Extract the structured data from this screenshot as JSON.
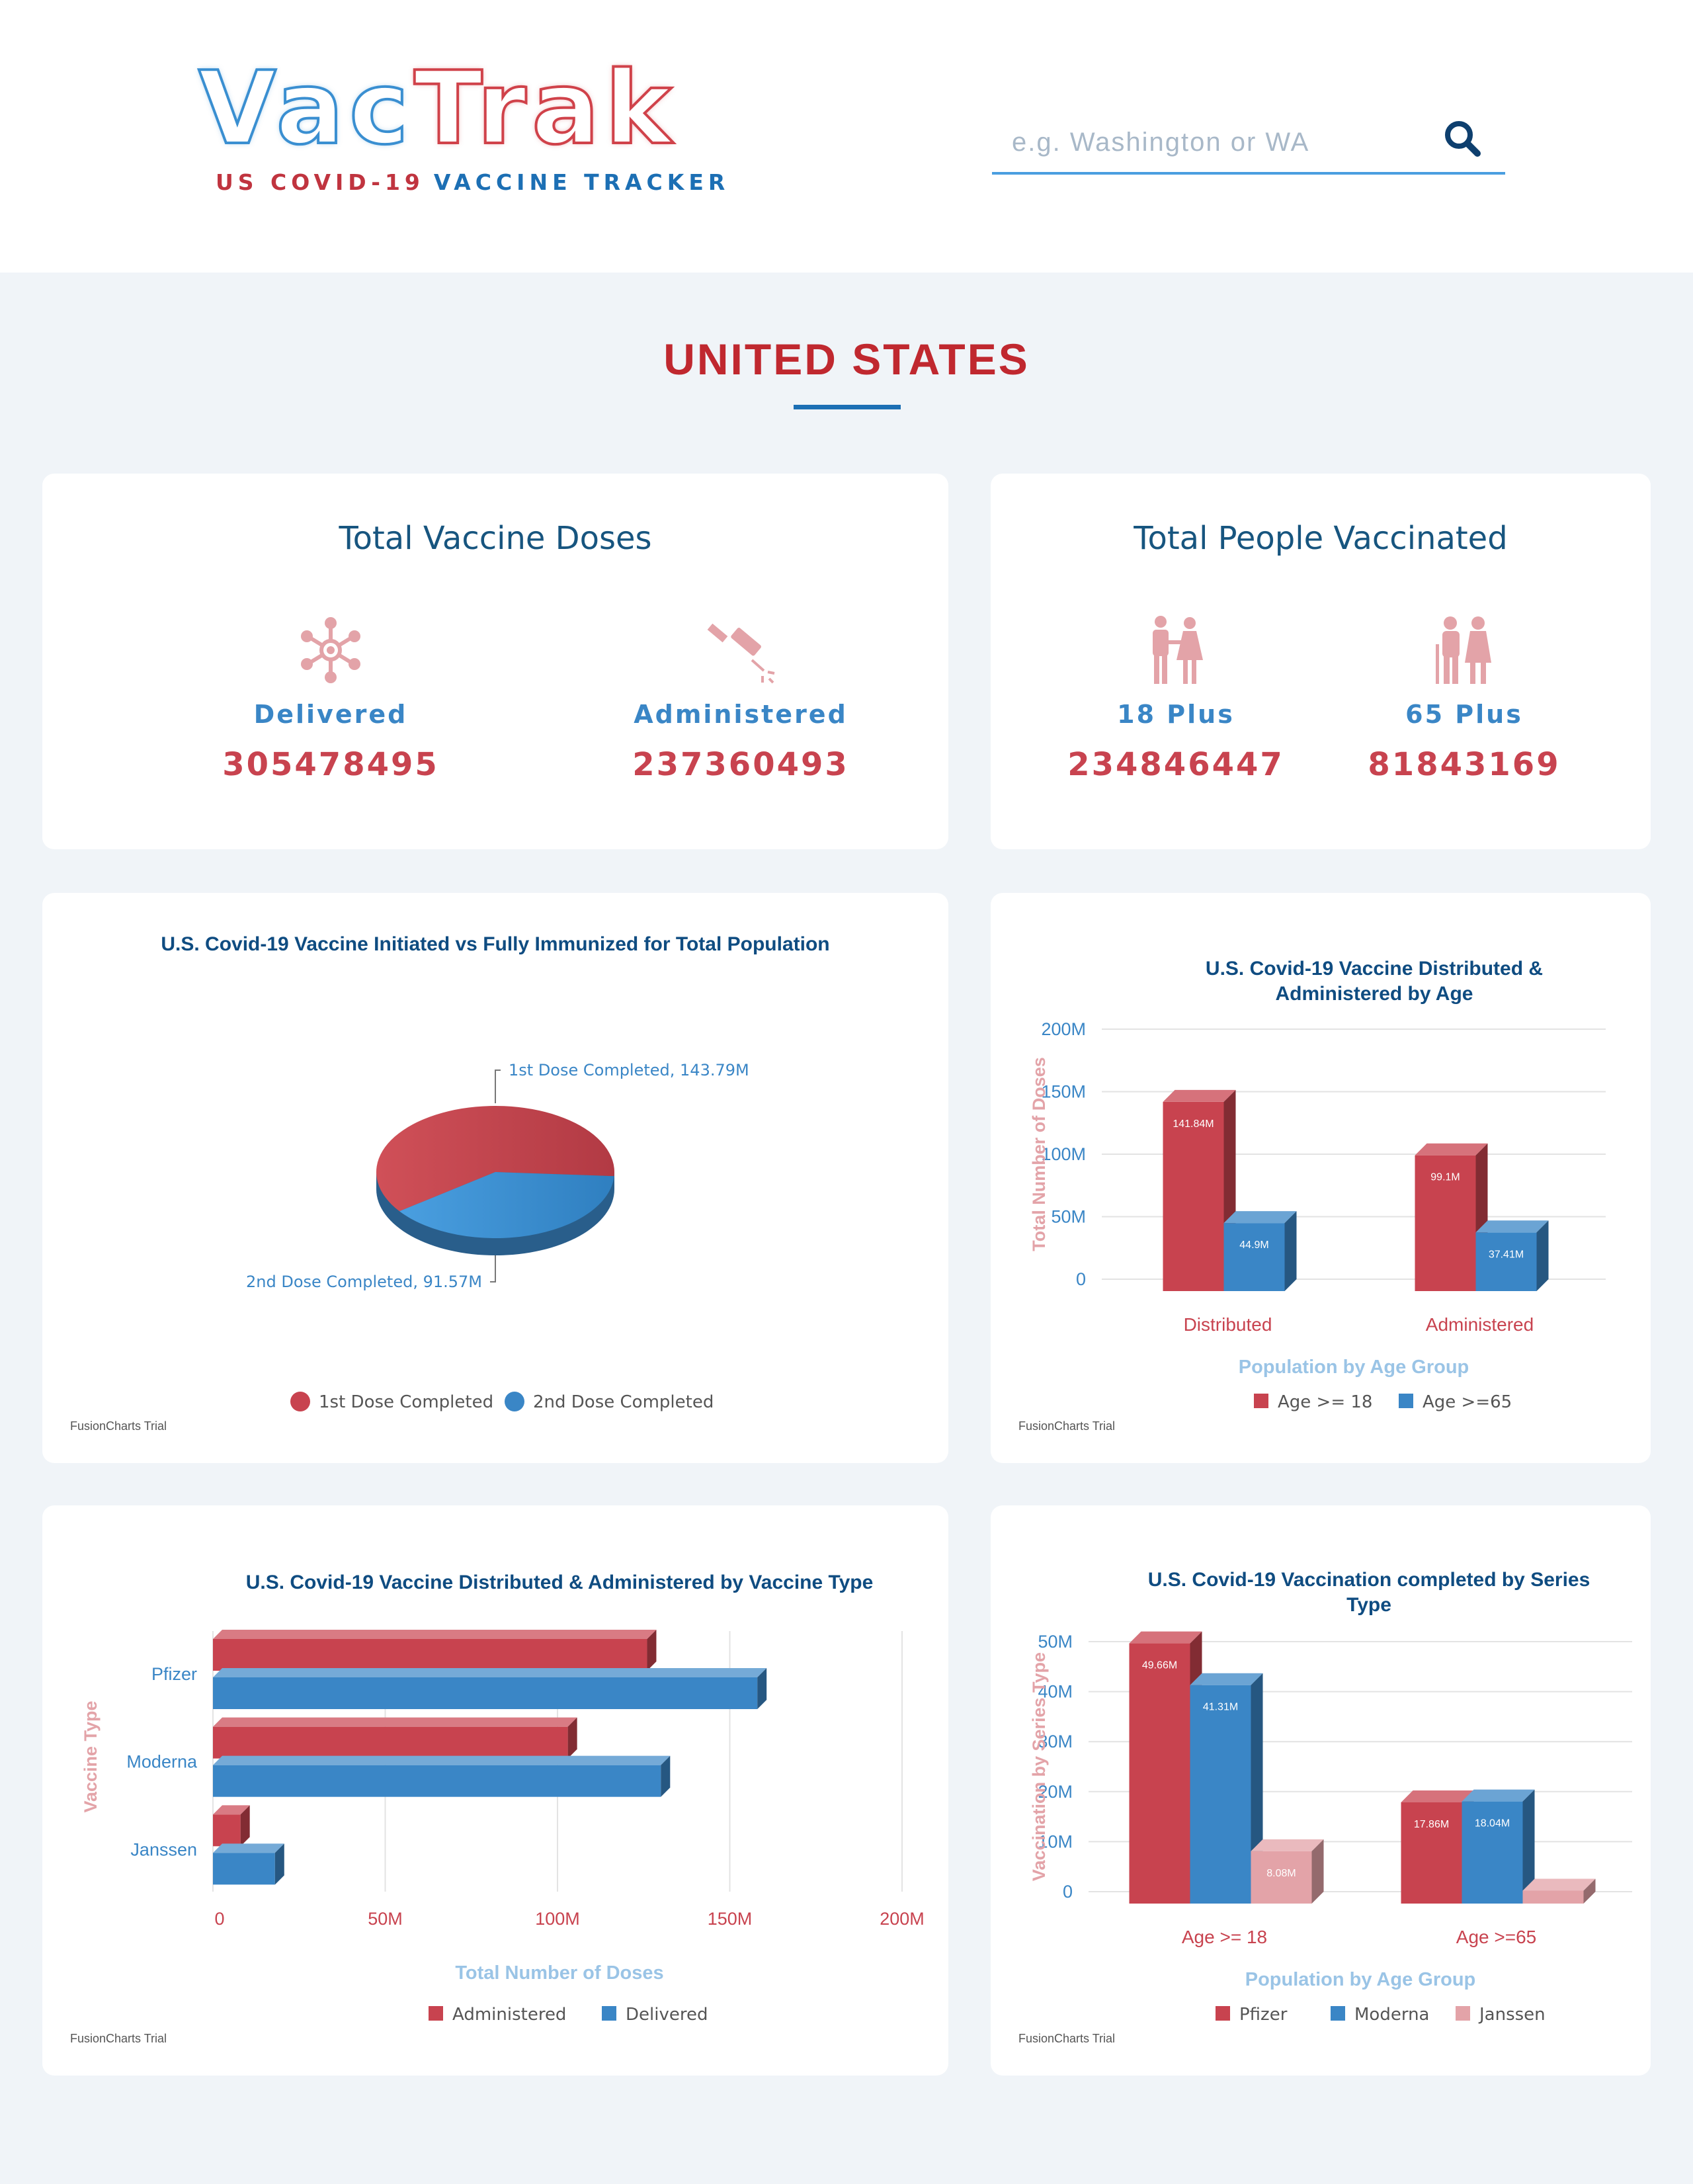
{
  "header": {
    "logo_vac": "Vac",
    "logo_trak": "Trak",
    "tagline_red": "US COVID-19",
    "tagline_blue": "VACCINE TRACKER",
    "search_placeholder": "e.g. Washington or WA",
    "search_icon": "search-icon"
  },
  "page_title": "UNITED STATES",
  "doses_card": {
    "title": "Total Vaccine Doses",
    "items": [
      {
        "label": "Delivered",
        "value": "305478495",
        "icon": "virus-icon"
      },
      {
        "label": "Administered",
        "value": "237360493",
        "icon": "syringe-icon"
      }
    ]
  },
  "people_card": {
    "title": "Total People Vaccinated",
    "items": [
      {
        "label": "18 Plus",
        "value": "234846447",
        "icon": "adult-couple-icon"
      },
      {
        "label": "65 Plus",
        "value": "81843169",
        "icon": "elderly-couple-icon"
      }
    ]
  },
  "colors": {
    "red": "#c8434f",
    "blue": "#3a86c6",
    "pink": "#e3a3a8"
  },
  "trial_label": "FusionCharts Trial",
  "chart_data": [
    {
      "id": "pie",
      "type": "pie",
      "title": "U.S. Covid-19 Vaccine Initiated vs Fully Immunized for Total Population",
      "slices": [
        {
          "name": "1st Dose Completed",
          "value": 143.79,
          "label": "1st Dose Completed, 143.79M",
          "color": "#c8434f"
        },
        {
          "name": "2nd Dose Completed",
          "value": 91.57,
          "label": "2nd Dose Completed, 91.57M",
          "color": "#3a86c6"
        }
      ],
      "legend": [
        "1st Dose Completed",
        "2nd Dose Completed"
      ],
      "legend_position": "bottom"
    },
    {
      "id": "age",
      "type": "bar",
      "title_lines": [
        "U.S. Covid-19 Vaccine Distributed &",
        "Administered by Age"
      ],
      "categories": [
        "Distributed",
        "Administered"
      ],
      "series": [
        {
          "name": "Age >= 18",
          "values": [
            141.84,
            99.1
          ],
          "labels": [
            "141.84M",
            "99.1M"
          ],
          "color": "#c8434f"
        },
        {
          "name": "Age >=65",
          "values": [
            44.9,
            37.41
          ],
          "labels": [
            "44.9M",
            "37.41M"
          ],
          "color": "#3a86c6"
        }
      ],
      "xlabel": "Population by Age Group",
      "ylabel": "Total Number of Doses",
      "yticks": [
        "0",
        "50M",
        "100M",
        "150M",
        "200M"
      ],
      "ylim": [
        0,
        200
      ],
      "legend_position": "bottom"
    },
    {
      "id": "type",
      "type": "bar",
      "orientation": "horizontal",
      "title": "U.S. Covid-19 Vaccine Distributed & Administered by Vaccine Type",
      "categories": [
        "Pfizer",
        "Moderna",
        "Janssen"
      ],
      "series": [
        {
          "name": "Administered",
          "values": [
            126,
            103,
            8
          ],
          "color": "#c8434f"
        },
        {
          "name": "Delivered",
          "values": [
            158,
            130,
            18
          ],
          "color": "#3a86c6"
        }
      ],
      "xlabel": "Total Number of Doses",
      "ylabel": "Vaccine Type",
      "xticks": [
        "0",
        "50M",
        "100M",
        "150M",
        "200M"
      ],
      "xlim": [
        0,
        200
      ],
      "legend_position": "bottom"
    },
    {
      "id": "series",
      "type": "bar",
      "title_lines": [
        "U.S. Covid-19 Vaccination completed by Series",
        "Type"
      ],
      "categories": [
        "Age >= 18",
        "Age >=65"
      ],
      "series": [
        {
          "name": "Pfizer",
          "values": [
            49.66,
            17.86
          ],
          "labels": [
            "49.66M",
            "17.86M"
          ],
          "color": "#c8434f"
        },
        {
          "name": "Moderna",
          "values": [
            41.31,
            18.04
          ],
          "labels": [
            "41.31M",
            "18.04M"
          ],
          "color": "#3a86c6"
        },
        {
          "name": "Janssen",
          "values": [
            8.08,
            0.2
          ],
          "labels": [
            "8.08M",
            ""
          ],
          "color": "#e3a3a8"
        }
      ],
      "xlabel": "Population by Age Group",
      "ylabel": "Vaccination by Series Type",
      "yticks": [
        "0",
        "10M",
        "20M",
        "30M",
        "40M",
        "50M"
      ],
      "ylim": [
        0,
        50
      ],
      "legend_position": "bottom"
    }
  ]
}
